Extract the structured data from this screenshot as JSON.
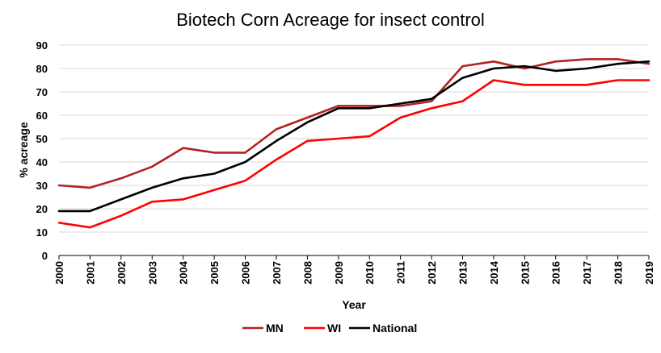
{
  "chart_data": {
    "type": "line",
    "title": "Biotech Corn Acreage for insect control",
    "xlabel": "Year",
    "ylabel": "% acreage",
    "ylim": [
      0,
      90
    ],
    "yticks": [
      0,
      10,
      20,
      30,
      40,
      50,
      60,
      70,
      80,
      90
    ],
    "grid": true,
    "legend_position": "bottom",
    "categories": [
      "2000",
      "2001",
      "2002",
      "2003",
      "2004",
      "2005",
      "2006",
      "2007",
      "2008",
      "2009",
      "2010",
      "2011",
      "2012",
      "2013",
      "2014",
      "2015",
      "2016",
      "2017",
      "2018",
      "2019"
    ],
    "series": [
      {
        "name": "MN",
        "color": "#b22222",
        "values": [
          30,
          29,
          33,
          38,
          46,
          44,
          44,
          54,
          59,
          64,
          64,
          64,
          66,
          81,
          83,
          80,
          83,
          84,
          84,
          82
        ]
      },
      {
        "name": "WI",
        "color": "#ff0000",
        "values": [
          14,
          12,
          17,
          23,
          24,
          28,
          32,
          41,
          49,
          50,
          51,
          59,
          63,
          66,
          75,
          73,
          73,
          73,
          75,
          75
        ]
      },
      {
        "name": "National",
        "color": "#000000",
        "values": [
          19,
          19,
          24,
          29,
          33,
          35,
          40,
          49,
          57,
          63,
          63,
          65,
          67,
          76,
          80,
          81,
          79,
          80,
          82,
          83
        ]
      }
    ]
  }
}
